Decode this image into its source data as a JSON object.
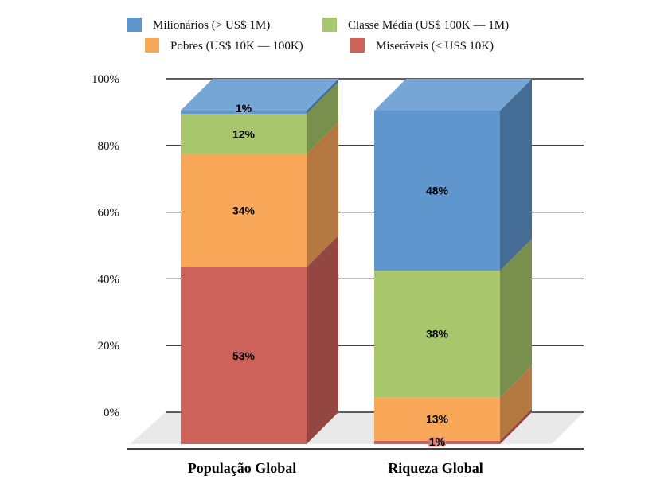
{
  "chart_data": {
    "type": "bar",
    "stacked": true,
    "three_d": true,
    "categories": [
      "População Global",
      "Riqueza Global"
    ],
    "series": [
      {
        "name": "Miseráveis (< US$ 10K)",
        "color": "#cd625a",
        "values": [
          53,
          1
        ],
        "labels": [
          "53%",
          "1%"
        ]
      },
      {
        "name": "Pobres (US$ 10K — 100K)",
        "color": "#f9a85a",
        "values": [
          34,
          13
        ],
        "labels": [
          "34%",
          "13%"
        ]
      },
      {
        "name": "Classe Média (US$ 100K — 1M)",
        "color": "#a8c66c",
        "values": [
          12,
          38
        ],
        "labels": [
          "12%",
          "38%"
        ]
      },
      {
        "name": "Milionários (> US$ 1M)",
        "color": "#5e96cd",
        "values": [
          1,
          48
        ],
        "labels": [
          "1%",
          "48%"
        ]
      }
    ],
    "legend": {
      "placement": "top-center",
      "order": [
        3,
        2,
        1,
        0
      ]
    },
    "yticks": [
      "0%",
      "20%",
      "40%",
      "60%",
      "80%",
      "100%"
    ],
    "ylim": [
      0,
      100
    ],
    "grid": true
  }
}
